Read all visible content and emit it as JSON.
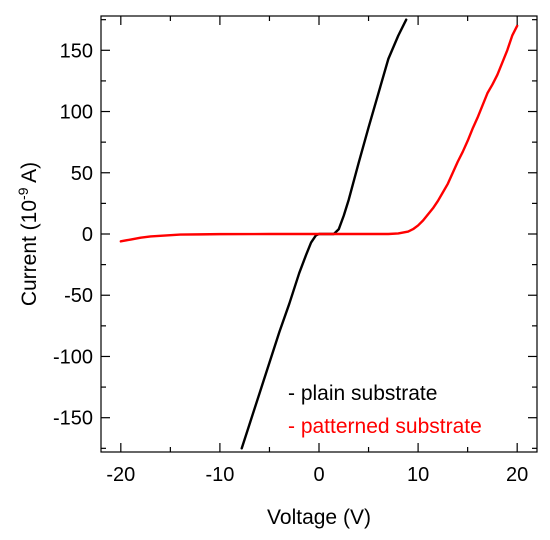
{
  "chart_data": {
    "type": "line",
    "xlabel": "Voltage (V)",
    "ylabel": {
      "prefix": "Current (10",
      "exponent": "-9",
      "suffix": " A)"
    },
    "xlim": [
      -22,
      22
    ],
    "ylim": [
      -178,
      178
    ],
    "x_major_ticks": [
      -20,
      -10,
      0,
      10,
      20
    ],
    "x_tick_labels": [
      "-20",
      "-10",
      "0",
      "10",
      "20"
    ],
    "x_minor_ticks": [
      -15,
      -5,
      5,
      15
    ],
    "y_major_ticks": [
      -150,
      -100,
      -50,
      0,
      50,
      100,
      150
    ],
    "y_tick_labels": [
      "-150",
      "-100",
      "-50",
      "0",
      "50",
      "100",
      "150"
    ],
    "y_minor_ticks": [
      -175,
      -125,
      -75,
      -25,
      25,
      75,
      125,
      175
    ],
    "grid": false,
    "legend_position": "bottom-right",
    "legend": [
      {
        "label": "- plain substrate",
        "color": "#000000"
      },
      {
        "label": "- patterned substrate",
        "color": "#ff0000"
      }
    ],
    "series": [
      {
        "color": "#000000",
        "x": [
          -7.8,
          -7.0,
          -6.0,
          -5.0,
          -4.0,
          -3.0,
          -2.0,
          -1.3,
          -0.8,
          -0.3,
          0.0,
          0.5,
          1.0,
          1.5,
          2.0,
          2.5,
          3.0,
          4.0,
          5.0,
          6.0,
          7.0,
          8.0,
          8.8
        ],
        "y": [
          -175,
          -155,
          -130,
          -105,
          -80,
          -57,
          -32,
          -17,
          -7,
          -1,
          0,
          0,
          0,
          0,
          4,
          15,
          28,
          58,
          87,
          115,
          143,
          162,
          175
        ]
      },
      {
        "color": "#ff0000",
        "x": [
          -20,
          -19,
          -18,
          -17,
          -16,
          -15,
          -14,
          -12,
          -10,
          -5,
          0,
          3,
          5,
          7,
          8,
          9,
          9.5,
          10,
          10.5,
          11,
          11.5,
          12,
          12.5,
          13,
          13.5,
          14,
          14.5,
          15,
          15.5,
          16,
          16.5,
          17,
          17.5,
          18,
          18.5,
          19,
          19.5,
          20
        ],
        "y": [
          -6,
          -4.5,
          -3,
          -2,
          -1.5,
          -1,
          -0.5,
          -0.3,
          -0.1,
          0,
          0,
          0,
          0,
          0,
          0.5,
          2,
          4,
          7,
          11,
          16,
          21,
          27,
          34,
          41,
          50,
          59,
          67,
          76,
          86,
          95,
          105,
          115,
          122,
          130,
          140,
          150,
          162,
          170
        ]
      }
    ]
  }
}
